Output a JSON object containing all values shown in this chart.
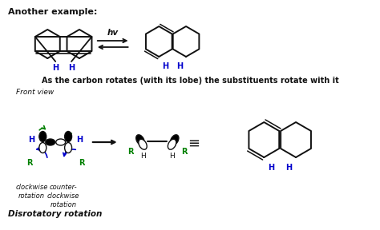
{
  "background_color": "#ffffff",
  "title_text": "Another example:",
  "subtitle_text": "As the carbon rotates (with its lobe) the substituents rotate with it",
  "front_view_label": "Front view",
  "disrotatory_label": "Disrotatory rotation",
  "clockwise_label": "clockwise\nrotation",
  "counter_clockwise_label": "counter-\nclockwise\nrotation",
  "hv_label": "hv",
  "blue_color": "#0000cc",
  "green_color": "#008000",
  "black_color": "#111111",
  "figsize": [
    4.74,
    2.88
  ],
  "dpi": 100
}
